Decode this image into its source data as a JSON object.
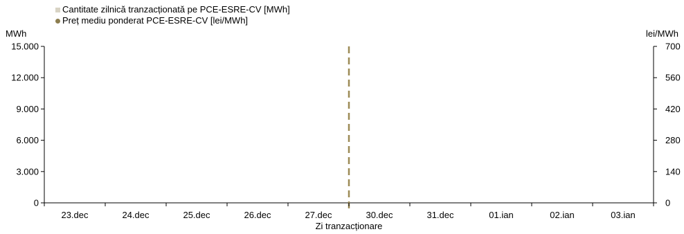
{
  "legend": [
    {
      "label": "Cantitate zilnică tranzacționată pe PCE-ESRE-CV [MWh]",
      "color": "#d8d3c4",
      "marker": "square"
    },
    {
      "label": "Preț mediu ponderat PCE-ESRE-CV [lei/MWh]",
      "color": "#8c7d4f",
      "marker": "dot"
    }
  ],
  "chart_data": {
    "type": "bar",
    "title": "",
    "xlabel": "Zi tranzacționare",
    "ylabel": "MWh",
    "y2label": "lei/MWh",
    "categories": [
      "23.dec",
      "24.dec",
      "25.dec",
      "26.dec",
      "27.dec",
      "30.dec",
      "31.dec",
      "01.ian",
      "02.ian",
      "03.ian"
    ],
    "ylim": [
      0,
      15000
    ],
    "y2lim": [
      0,
      700
    ],
    "yticks": [
      "0",
      "3.000",
      "6.000",
      "9.000",
      "12.000",
      "15.000"
    ],
    "y2ticks": [
      "0",
      "140",
      "280",
      "420",
      "560",
      "700"
    ],
    "series": [
      {
        "name": "Cantitate zilnică tranzacționată pe PCE-ESRE-CV [MWh]",
        "axis": "left",
        "values": [
          0,
          0,
          0,
          0,
          0,
          0,
          0,
          0,
          0,
          0
        ]
      },
      {
        "name": "Preț mediu ponderat PCE-ESRE-CV [lei/MWh]",
        "axis": "right",
        "values": [
          null,
          null,
          null,
          null,
          null,
          null,
          null,
          null,
          null,
          null
        ]
      }
    ],
    "separator_after_category": "27.dec",
    "separator_color": "#9c8a55",
    "grid": false,
    "legend_position": "top-left"
  }
}
